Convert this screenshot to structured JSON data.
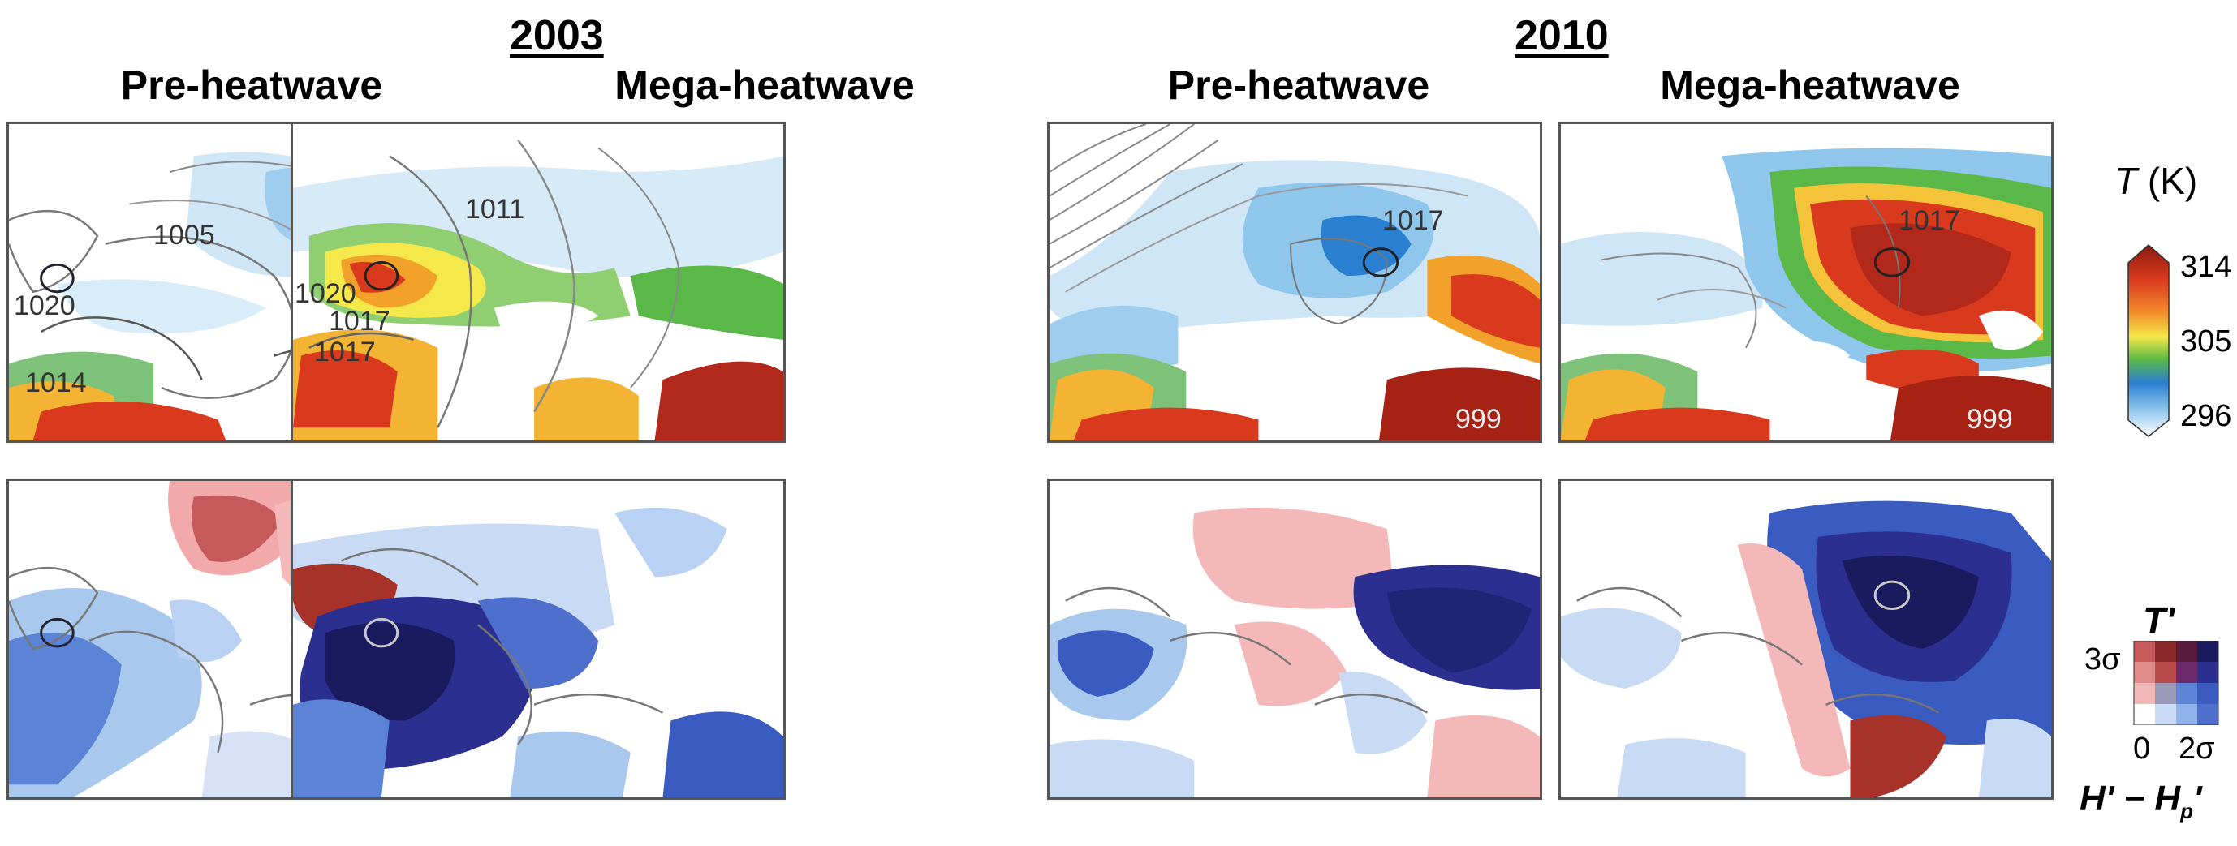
{
  "years": {
    "y2003": "2003",
    "y2010": "2010"
  },
  "phases": {
    "p1": "Pre-heatwave",
    "p2": "Mega-heatwave",
    "p3": "Pre-heatwave",
    "p4": "Mega-heatwave"
  },
  "isobars": {
    "p1": [
      "1005",
      "1020",
      "1014"
    ],
    "p2": [
      "1011",
      "1020",
      "1017",
      "1017"
    ],
    "p3": [
      "1017",
      "999"
    ],
    "p4": [
      "1017",
      "999"
    ]
  },
  "legend_temperature": {
    "label_symbol": "T",
    "label_unit": " (K)",
    "ticks": [
      "314",
      "305",
      "296"
    ],
    "colors": [
      "#8b1a10",
      "#d93a1d",
      "#f28b2a",
      "#f5e84a",
      "#5ab848",
      "#2a7fd1",
      "#8ec6ec",
      "#ffffff"
    ]
  },
  "legend_anomaly": {
    "title": "T'",
    "top_tick": "3σ",
    "bottom_left": "0",
    "bottom_right": "2σ",
    "xlabel": "H' − H",
    "xlabel_sub": "p",
    "xlabel_suffix": "'"
  }
}
